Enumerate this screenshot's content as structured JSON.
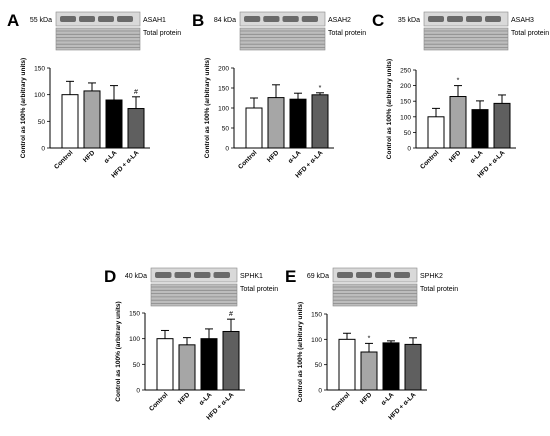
{
  "colors": {
    "Control": "#ffffff",
    "HFD": "#a6a6a6",
    "α-LA": "#000000",
    "HFD + α-LA": "#5f5f5f"
  },
  "y_axis_label": "Control as 100% (arbitrary units)",
  "blot_legend": "Total protein",
  "chart_data": [
    {
      "type": "bar",
      "panel": "A",
      "protein": "ASAH1",
      "marker": "55 kDa",
      "categories": [
        "Control",
        "HFD",
        "α-LA",
        "HFD + α-LA"
      ],
      "values": [
        100,
        107,
        90,
        74
      ],
      "errors": [
        25,
        15,
        27,
        22
      ],
      "annotations": [
        "",
        "",
        "",
        "#"
      ],
      "ylim": [
        0,
        150
      ],
      "yticks": [
        0,
        50,
        100,
        150
      ],
      "ylabel": "Control as 100% (arbitrary units)"
    },
    {
      "type": "bar",
      "panel": "B",
      "protein": "ASAH2",
      "marker": "84 kDa",
      "categories": [
        "Control",
        "HFD",
        "α-LA",
        "HFD + α-LA"
      ],
      "values": [
        100,
        126,
        122,
        133
      ],
      "errors": [
        25,
        32,
        15,
        5
      ],
      "annotations": [
        "",
        "",
        "",
        "*"
      ],
      "ylim": [
        0,
        200
      ],
      "yticks": [
        0,
        50,
        100,
        150,
        200
      ],
      "ylabel": "Control as 100% (arbitrary units)"
    },
    {
      "type": "bar",
      "panel": "C",
      "protein": "ASAH3",
      "marker": "35 kDa",
      "categories": [
        "Control",
        "HFD",
        "α-LA",
        "HFD + α-LA"
      ],
      "values": [
        100,
        165,
        123,
        143
      ],
      "errors": [
        27,
        35,
        28,
        27
      ],
      "annotations": [
        "",
        "*",
        "",
        ""
      ],
      "ylim": [
        0,
        250
      ],
      "yticks": [
        0,
        50,
        100,
        150,
        200,
        250
      ],
      "ylabel": "Control as 100% (arbitrary units)"
    },
    {
      "type": "bar",
      "panel": "D",
      "protein": "SPHK1",
      "marker": "40 kDa",
      "categories": [
        "Control",
        "HFD",
        "α-LA",
        "HFD + α-LA"
      ],
      "values": [
        100,
        88,
        100,
        114
      ],
      "errors": [
        16,
        14,
        19,
        24
      ],
      "annotations": [
        "",
        "",
        "",
        "#"
      ],
      "ylim": [
        0,
        150
      ],
      "yticks": [
        0,
        50,
        100,
        150
      ],
      "ylabel": "Control as 100% (arbitrary units)"
    },
    {
      "type": "bar",
      "panel": "E",
      "protein": "SPHK2",
      "marker": "69 kDa",
      "categories": [
        "Control",
        "HFD",
        "α-LA",
        "HFD + α-LA"
      ],
      "values": [
        100,
        75,
        93,
        90
      ],
      "errors": [
        12,
        17,
        4,
        13
      ],
      "annotations": [
        "",
        "*",
        "",
        ""
      ],
      "ylim": [
        0,
        150
      ],
      "yticks": [
        0,
        50,
        100,
        150
      ],
      "ylabel": "Control as 100% (arbitrary units)"
    }
  ]
}
